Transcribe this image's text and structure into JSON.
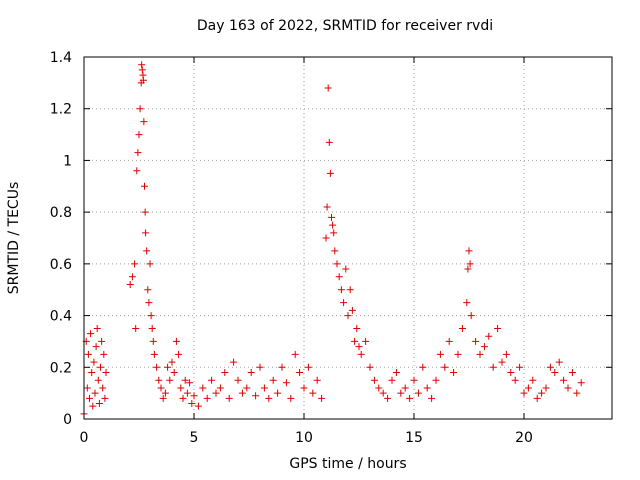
{
  "chart_data": {
    "type": "scatter",
    "title": "Day 163 of 2022, SRMTID for receiver rvdi",
    "xlabel": "GPS time / hours",
    "ylabel": "SRMTID / TECUs",
    "xlim": [
      0,
      24
    ],
    "ylim": [
      0,
      1.4
    ],
    "x_ticks": [
      0,
      5,
      10,
      15,
      20
    ],
    "y_ticks": [
      0,
      0.2,
      0.4,
      0.6,
      0.8,
      1,
      1.2,
      1.4
    ],
    "x_tick_labels": [
      "0",
      "5",
      "10",
      "15",
      "20"
    ],
    "y_tick_labels": [
      "0",
      "0.2",
      "0.4",
      "0.6",
      "0.8",
      "1",
      "1.2",
      "1.4"
    ],
    "grid": true,
    "marker": "+",
    "color": "#e00000",
    "series": [
      {
        "name": "rvdi",
        "x": [
          0.0,
          0.1,
          0.15,
          0.2,
          0.25,
          0.3,
          0.35,
          0.4,
          0.45,
          0.5,
          0.55,
          0.6,
          0.65,
          0.7,
          0.75,
          0.8,
          0.85,
          0.9,
          0.95,
          1.0,
          2.1,
          2.2,
          2.3,
          2.35,
          2.4,
          2.45,
          2.5,
          2.55,
          2.6,
          2.62,
          2.65,
          2.68,
          2.7,
          2.72,
          2.75,
          2.78,
          2.8,
          2.85,
          2.9,
          2.95,
          3.0,
          3.05,
          3.1,
          3.15,
          3.2,
          3.3,
          3.4,
          3.5,
          3.6,
          3.7,
          3.8,
          3.9,
          4.0,
          4.1,
          4.2,
          4.3,
          4.4,
          4.5,
          4.6,
          4.7,
          4.8,
          4.9,
          5.0,
          5.2,
          5.4,
          5.6,
          5.8,
          6.0,
          6.2,
          6.4,
          6.6,
          6.8,
          7.0,
          7.2,
          7.4,
          7.6,
          7.8,
          8.0,
          8.2,
          8.4,
          8.6,
          8.8,
          9.0,
          9.2,
          9.4,
          9.6,
          9.8,
          10.0,
          10.2,
          10.4,
          10.6,
          10.8,
          11.0,
          11.05,
          11.1,
          11.15,
          11.2,
          11.25,
          11.3,
          11.35,
          11.4,
          11.5,
          11.6,
          11.7,
          11.8,
          11.9,
          12.0,
          12.1,
          12.2,
          12.3,
          12.4,
          12.5,
          12.6,
          12.8,
          13.0,
          13.2,
          13.4,
          13.6,
          13.8,
          14.0,
          14.2,
          14.4,
          14.6,
          14.8,
          15.0,
          15.2,
          15.4,
          15.6,
          15.8,
          16.0,
          16.2,
          16.4,
          16.6,
          16.8,
          17.0,
          17.2,
          17.4,
          17.45,
          17.5,
          17.55,
          17.6,
          17.8,
          18.0,
          18.2,
          18.4,
          18.6,
          18.8,
          19.0,
          19.2,
          19.4,
          19.6,
          19.8,
          20.0,
          20.2,
          20.4,
          20.6,
          20.8,
          21.0,
          21.2,
          21.4,
          21.6,
          21.8,
          22.0,
          22.2,
          22.4,
          22.6
        ],
        "y": [
          0.02,
          0.3,
          0.12,
          0.25,
          0.08,
          0.33,
          0.18,
          0.05,
          0.22,
          0.1,
          0.28,
          0.35,
          0.15,
          0.06,
          0.2,
          0.3,
          0.12,
          0.25,
          0.08,
          0.18,
          0.52,
          0.55,
          0.6,
          0.35,
          0.96,
          1.03,
          1.1,
          1.2,
          1.3,
          1.37,
          1.35,
          1.33,
          1.31,
          1.15,
          0.9,
          0.8,
          0.72,
          0.65,
          0.5,
          0.45,
          0.6,
          0.4,
          0.35,
          0.3,
          0.25,
          0.2,
          0.15,
          0.12,
          0.08,
          0.1,
          0.2,
          0.15,
          0.22,
          0.18,
          0.3,
          0.25,
          0.12,
          0.08,
          0.15,
          0.1,
          0.14,
          0.06,
          0.09,
          0.05,
          0.12,
          0.08,
          0.15,
          0.1,
          0.12,
          0.18,
          0.08,
          0.22,
          0.15,
          0.1,
          0.12,
          0.18,
          0.09,
          0.2,
          0.12,
          0.08,
          0.15,
          0.1,
          0.2,
          0.14,
          0.08,
          0.25,
          0.18,
          0.12,
          0.2,
          0.1,
          0.15,
          0.08,
          0.7,
          0.82,
          1.28,
          1.07,
          0.95,
          0.78,
          0.75,
          0.72,
          0.65,
          0.6,
          0.55,
          0.5,
          0.45,
          0.58,
          0.4,
          0.5,
          0.42,
          0.3,
          0.35,
          0.28,
          0.25,
          0.3,
          0.2,
          0.15,
          0.12,
          0.1,
          0.08,
          0.15,
          0.18,
          0.1,
          0.12,
          0.08,
          0.15,
          0.1,
          0.2,
          0.12,
          0.08,
          0.15,
          0.25,
          0.2,
          0.3,
          0.18,
          0.25,
          0.35,
          0.45,
          0.58,
          0.65,
          0.6,
          0.4,
          0.3,
          0.25,
          0.28,
          0.32,
          0.2,
          0.35,
          0.22,
          0.25,
          0.18,
          0.15,
          0.2,
          0.1,
          0.12,
          0.15,
          0.08,
          0.1,
          0.12,
          0.2,
          0.18,
          0.22,
          0.15,
          0.12,
          0.18,
          0.1,
          0.14
        ]
      }
    ]
  }
}
